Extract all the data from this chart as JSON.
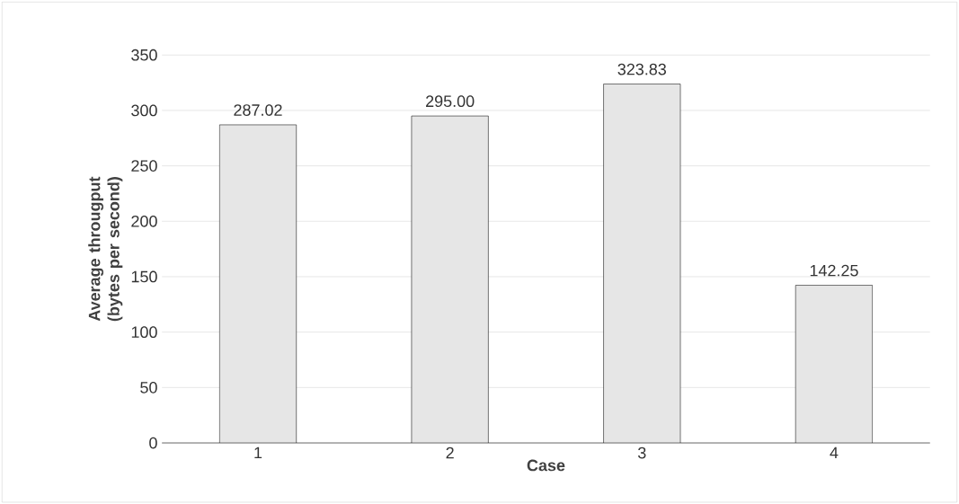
{
  "chart_data": {
    "type": "bar",
    "xlabel": "Case",
    "ylabel": "Average througput (bytes per second)",
    "categories": [
      "1",
      "2",
      "3",
      "4"
    ],
    "values": [
      287.02,
      295.0,
      323.83,
      142.25
    ],
    "value_labels": [
      "287.02",
      "295.00",
      "323.83",
      "142.25"
    ],
    "color": "#e6e6e6",
    "ylim": [
      0,
      350
    ],
    "yticks": [
      0,
      50,
      100,
      150,
      200,
      250,
      300,
      350
    ],
    "grid": "y"
  }
}
